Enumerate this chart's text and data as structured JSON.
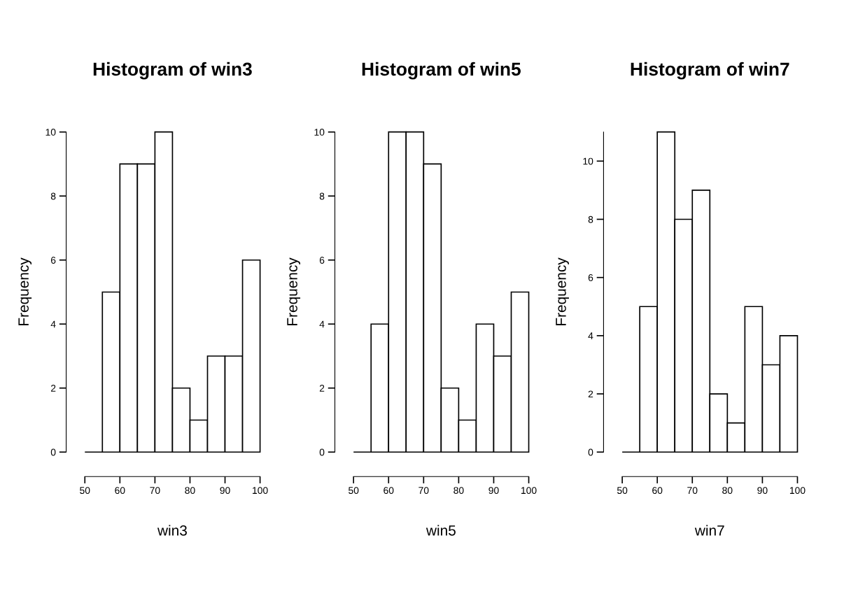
{
  "chart_data": [
    {
      "type": "histogram",
      "title": "Histogram of win3",
      "xlabel": "win3",
      "ylabel": "Frequency",
      "bins": [
        50,
        55,
        60,
        65,
        70,
        75,
        80,
        85,
        90,
        95,
        100
      ],
      "values": [
        0,
        5,
        9,
        9,
        10,
        2,
        1,
        3,
        3,
        6
      ],
      "color": "#ffffff",
      "xlim": [
        50,
        100
      ],
      "xticks": [
        50,
        60,
        70,
        80,
        90,
        100
      ],
      "ylim": [
        0,
        10
      ],
      "yticks": [
        0,
        2,
        4,
        6,
        8,
        10
      ],
      "grid": false,
      "legend": false
    },
    {
      "type": "histogram",
      "title": "Histogram of win5",
      "xlabel": "win5",
      "ylabel": "Frequency",
      "bins": [
        50,
        55,
        60,
        65,
        70,
        75,
        80,
        85,
        90,
        95,
        100
      ],
      "values": [
        0,
        4,
        10,
        10,
        9,
        2,
        1,
        4,
        3,
        5
      ],
      "color": "#ffffff",
      "xlim": [
        50,
        100
      ],
      "xticks": [
        50,
        60,
        70,
        80,
        90,
        100
      ],
      "ylim": [
        0,
        10
      ],
      "yticks": [
        0,
        2,
        4,
        6,
        8,
        10
      ],
      "grid": false,
      "legend": false
    },
    {
      "type": "histogram",
      "title": "Histogram of win7",
      "xlabel": "win7",
      "ylabel": "Frequency",
      "bins": [
        50,
        55,
        60,
        65,
        70,
        75,
        80,
        85,
        90,
        95,
        100
      ],
      "values": [
        0,
        5,
        11,
        8,
        9,
        2,
        1,
        5,
        3,
        4
      ],
      "color": "#ffffff",
      "xlim": [
        50,
        100
      ],
      "xticks": [
        50,
        60,
        70,
        80,
        90,
        100
      ],
      "ylim": [
        0,
        11
      ],
      "yticks": [
        0,
        2,
        4,
        6,
        8,
        10
      ],
      "grid": false,
      "legend": false
    }
  ]
}
